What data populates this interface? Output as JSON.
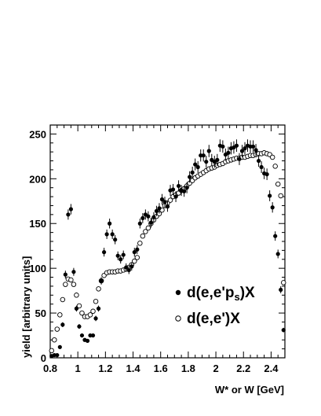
{
  "chart_data": {
    "type": "scatter",
    "xlabel": "W* or W [GeV]",
    "ylabel": "yield [arbitrary units]",
    "xlim": [
      0.8,
      2.5
    ],
    "ylim": [
      0,
      260
    ],
    "x_ticks": [
      "0.8",
      "1",
      "1.2",
      "1.4",
      "1.6",
      "1.8",
      "2",
      "2.2",
      "2.4"
    ],
    "y_ticks": [
      "0",
      "50",
      "100",
      "150",
      "200",
      "250"
    ],
    "grid": false,
    "legend_position": "center-right",
    "series": [
      {
        "name": "d(e,e'pₛ)X",
        "legend_main": "d(e,e'p",
        "legend_sub": "s",
        "legend_tail": ")X",
        "marker": "filled-circle",
        "color": "#000000",
        "x": [
          0.81,
          0.83,
          0.85,
          0.87,
          0.89,
          0.91,
          0.93,
          0.95,
          0.97,
          0.99,
          1.01,
          1.03,
          1.05,
          1.07,
          1.09,
          1.11,
          1.13,
          1.15,
          1.17,
          1.19,
          1.21,
          1.23,
          1.25,
          1.27,
          1.29,
          1.31,
          1.33,
          1.35,
          1.37,
          1.39,
          1.41,
          1.43,
          1.45,
          1.47,
          1.49,
          1.51,
          1.53,
          1.55,
          1.57,
          1.59,
          1.61,
          1.63,
          1.65,
          1.67,
          1.69,
          1.71,
          1.73,
          1.75,
          1.77,
          1.79,
          1.81,
          1.83,
          1.85,
          1.87,
          1.89,
          1.91,
          1.93,
          1.95,
          1.97,
          1.99,
          2.01,
          2.03,
          2.05,
          2.07,
          2.09,
          2.11,
          2.13,
          2.15,
          2.17,
          2.19,
          2.21,
          2.23,
          2.25,
          2.27,
          2.29,
          2.31,
          2.33,
          2.35,
          2.37,
          2.39,
          2.41,
          2.43,
          2.45,
          2.47,
          2.49
        ],
        "y": [
          2,
          3,
          3,
          12,
          37,
          93,
          160,
          166,
          96,
          55,
          35,
          25,
          20,
          19,
          25,
          25,
          44,
          55,
          86,
          118,
          138,
          150,
          138,
          132,
          114,
          110,
          115,
          101,
          98,
          102,
          118,
          121,
          150,
          156,
          160,
          158,
          151,
          157,
          164,
          167,
          177,
          174,
          169,
          187,
          188,
          180,
          192,
          187,
          186,
          190,
          202,
          207,
          216,
          213,
          226,
          226,
          219,
          231,
          221,
          219,
          221,
          237,
          236,
          227,
          229,
          234,
          235,
          237,
          222,
          231,
          234,
          237,
          236,
          236,
          232,
          220,
          213,
          206,
          205,
          181,
          168,
          136,
          116,
          76,
          31
        ]
      },
      {
        "name": "d(e,e')X",
        "marker": "open-circle",
        "color": "#000000",
        "x": [
          0.81,
          0.83,
          0.85,
          0.87,
          0.89,
          0.91,
          0.93,
          0.95,
          0.97,
          0.99,
          1.01,
          1.03,
          1.05,
          1.07,
          1.09,
          1.11,
          1.13,
          1.15,
          1.17,
          1.19,
          1.21,
          1.23,
          1.25,
          1.27,
          1.29,
          1.31,
          1.33,
          1.35,
          1.37,
          1.39,
          1.41,
          1.43,
          1.45,
          1.47,
          1.49,
          1.51,
          1.53,
          1.55,
          1.57,
          1.59,
          1.61,
          1.63,
          1.65,
          1.67,
          1.69,
          1.71,
          1.73,
          1.75,
          1.77,
          1.79,
          1.81,
          1.83,
          1.85,
          1.87,
          1.89,
          1.91,
          1.93,
          1.95,
          1.97,
          1.99,
          2.01,
          2.03,
          2.05,
          2.07,
          2.09,
          2.11,
          2.13,
          2.15,
          2.17,
          2.19,
          2.21,
          2.23,
          2.25,
          2.27,
          2.29,
          2.31,
          2.33,
          2.35,
          2.37,
          2.39,
          2.41,
          2.43,
          2.45,
          2.47,
          2.49
        ],
        "y": [
          8,
          20,
          32,
          48,
          65,
          82,
          88,
          87,
          82,
          70,
          58,
          50,
          46,
          46,
          48,
          52,
          63,
          77,
          86,
          92,
          95,
          96,
          96,
          96,
          97,
          97,
          98,
          99,
          101,
          104,
          108,
          112,
          128,
          136,
          141,
          145,
          150,
          154,
          158,
          161,
          165,
          170,
          173,
          176,
          180,
          182,
          184,
          187,
          189,
          192,
          195,
          198,
          201,
          203,
          205,
          207,
          209,
          211,
          212,
          213,
          215,
          216,
          217,
          219,
          220,
          221,
          222,
          223,
          223,
          224,
          224,
          225,
          226,
          226,
          227,
          228,
          228,
          229,
          228,
          227,
          224,
          214,
          194,
          181,
          84
        ]
      }
    ]
  }
}
